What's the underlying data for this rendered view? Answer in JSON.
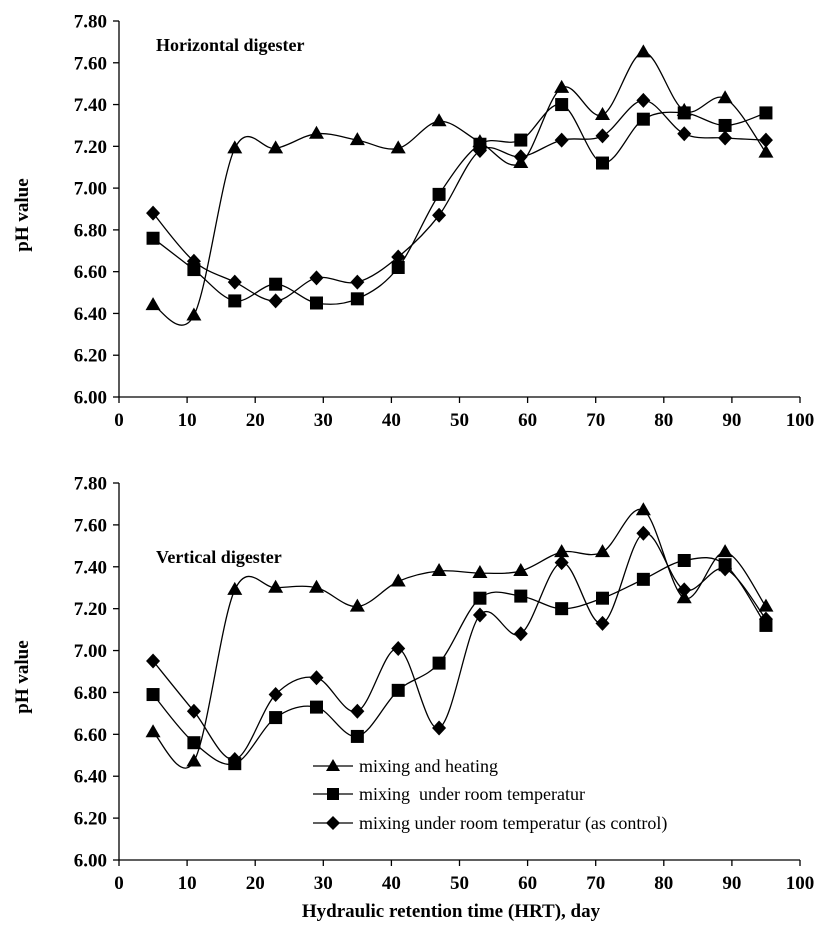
{
  "chart_data": [
    {
      "type": "line",
      "title": "Horizontal digester",
      "xlabel": "",
      "ylabel": "pH value",
      "xlim": [
        0,
        100
      ],
      "ylim": [
        6.0,
        7.8
      ],
      "xticks": [
        "0",
        "10",
        "20",
        "30",
        "40",
        "50",
        "60",
        "70",
        "80",
        "90",
        "100"
      ],
      "yticks": [
        "6.00",
        "6.20",
        "6.40",
        "6.60",
        "6.80",
        "7.00",
        "7.20",
        "7.40",
        "7.60",
        "7.80"
      ],
      "grid": false,
      "x": [
        5,
        11,
        17,
        23,
        29,
        35,
        41,
        47,
        53,
        59,
        65,
        71,
        77,
        83,
        89,
        95
      ],
      "series": [
        {
          "name": "mixing and heating",
          "marker": "triangle",
          "values": [
            6.44,
            6.39,
            7.19,
            7.19,
            7.26,
            7.23,
            7.19,
            7.32,
            7.22,
            7.12,
            7.48,
            7.35,
            7.65,
            7.37,
            7.43,
            7.17
          ]
        },
        {
          "name": "mixing  under room temperatur",
          "marker": "square",
          "values": [
            6.76,
            6.61,
            6.46,
            6.54,
            6.45,
            6.47,
            6.62,
            6.97,
            7.21,
            7.23,
            7.4,
            7.12,
            7.33,
            7.36,
            7.3,
            7.36
          ]
        },
        {
          "name": "mixing under room temperatur (as control)",
          "marker": "diamond",
          "values": [
            6.88,
            6.65,
            6.55,
            6.46,
            6.57,
            6.55,
            6.67,
            6.87,
            7.18,
            7.15,
            7.23,
            7.25,
            7.42,
            7.26,
            7.24,
            7.23
          ]
        }
      ]
    },
    {
      "type": "line",
      "title": "Vertical digester",
      "xlabel": "Hydraulic retention time (HRT), day",
      "ylabel": "pH value",
      "xlim": [
        0,
        100
      ],
      "ylim": [
        6.0,
        7.8
      ],
      "xticks": [
        "0",
        "10",
        "20",
        "30",
        "40",
        "50",
        "60",
        "70",
        "80",
        "90",
        "100"
      ],
      "yticks": [
        "6.00",
        "6.20",
        "6.40",
        "6.60",
        "6.80",
        "7.00",
        "7.20",
        "7.40",
        "7.60",
        "7.80"
      ],
      "grid": false,
      "legend": {
        "placement": "bottom-right",
        "entries": [
          "mixing and heating",
          "mixing  under room temperatur",
          "mixing under room temperatur (as control)"
        ]
      },
      "x": [
        5,
        11,
        17,
        23,
        29,
        35,
        41,
        47,
        53,
        59,
        65,
        71,
        77,
        83,
        89,
        95
      ],
      "series": [
        {
          "name": "mixing and heating",
          "marker": "triangle",
          "values": [
            6.61,
            6.47,
            7.29,
            7.3,
            7.3,
            7.21,
            7.33,
            7.38,
            7.37,
            7.38,
            7.47,
            7.47,
            7.67,
            7.25,
            7.47,
            7.21
          ]
        },
        {
          "name": "mixing  under room temperatur",
          "marker": "square",
          "values": [
            6.79,
            6.56,
            6.46,
            6.68,
            6.73,
            6.59,
            6.81,
            6.94,
            7.25,
            7.26,
            7.2,
            7.25,
            7.34,
            7.43,
            7.41,
            7.12
          ]
        },
        {
          "name": "mixing under room temperatur (as control)",
          "marker": "diamond",
          "values": [
            6.95,
            6.71,
            6.48,
            6.79,
            6.87,
            6.71,
            7.01,
            6.63,
            7.17,
            7.08,
            7.42,
            7.13,
            7.56,
            7.29,
            7.39,
            7.15
          ]
        }
      ]
    }
  ]
}
